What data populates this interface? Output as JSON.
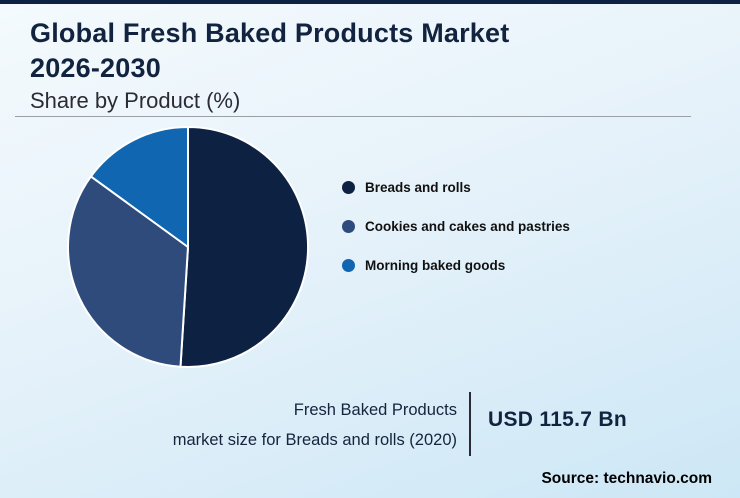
{
  "header": {
    "title_line1": "Global Fresh Baked Products Market",
    "title_line2": "2026-2030",
    "subtitle": "Share by Product (%)"
  },
  "chart_data": {
    "type": "pie",
    "title": "Global Fresh Baked Products Market 2026-2030",
    "subtitle": "Share by Product (%)",
    "unit": "%",
    "start_angle_deg": 0,
    "legend_position": "right",
    "slices": [
      {
        "label": "Breads and rolls",
        "value": 51,
        "color": "#0d2242"
      },
      {
        "label": "Cookies and cakes and pastries",
        "value": 34,
        "color": "#2f4b7c"
      },
      {
        "label": "Morning baked goods",
        "value": 15,
        "color": "#1066b0"
      }
    ]
  },
  "footer": {
    "caption_line1": "Fresh Baked Products",
    "caption_line2": "market size for Breads and rolls (2020)",
    "value": "USD 115.7 Bn",
    "source": "Source: technavio.com"
  }
}
